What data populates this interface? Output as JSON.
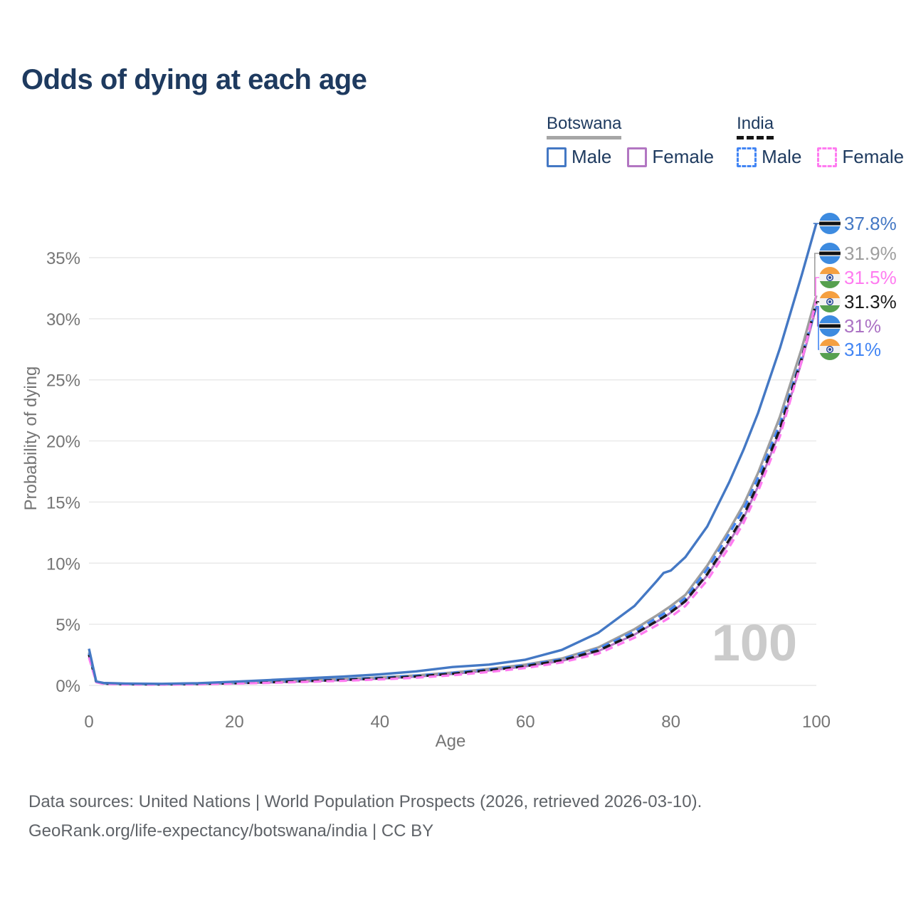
{
  "title": "Odds of dying at each age",
  "legend": {
    "groups": [
      {
        "label": "Botswana",
        "line_style": "solid",
        "underline_color": "#a6a6a6",
        "items": [
          {
            "label": "Male",
            "color": "#4478c4",
            "dash": false
          },
          {
            "label": "Female",
            "color": "#b276c2",
            "dash": false
          }
        ]
      },
      {
        "label": "India",
        "line_style": "dashed",
        "underline_color": "#161616",
        "items": [
          {
            "label": "Male",
            "color": "#4285f4",
            "dash": true
          },
          {
            "label": "Female",
            "color": "#ff7bf0",
            "dash": true
          }
        ]
      }
    ]
  },
  "chart_data": {
    "type": "line",
    "title": "Odds of dying at each age",
    "xlabel": "Age",
    "ylabel": "Probability of dying",
    "x_ticks": [
      0,
      20,
      40,
      60,
      80,
      100
    ],
    "y_ticks": [
      "0%",
      "5%",
      "10%",
      "15%",
      "20%",
      "25%",
      "30%",
      "35%"
    ],
    "xlim": [
      0,
      100
    ],
    "ylim": [
      0,
      38.5
    ],
    "grid": "horizontal",
    "legend_position": "top-right",
    "age_indicator": "100",
    "x": [
      0,
      1,
      2,
      5,
      10,
      15,
      20,
      25,
      30,
      35,
      40,
      45,
      50,
      55,
      60,
      65,
      70,
      75,
      78,
      79,
      80,
      82,
      85,
      88,
      90,
      92,
      95,
      98,
      100
    ],
    "series": [
      {
        "id": "botswana_female",
        "name": "Botswana Female",
        "color": "#b276c2",
        "dash": false,
        "width": 3,
        "values": [
          2.45,
          0.28,
          0.15,
          0.1,
          0.08,
          0.11,
          0.16,
          0.24,
          0.33,
          0.43,
          0.55,
          0.71,
          0.93,
          1.22,
          1.55,
          2.0,
          2.8,
          4.15,
          5.2,
          5.55,
          5.95,
          6.85,
          9.0,
          11.7,
          13.7,
          16.3,
          20.8,
          26.5,
          31.0
        ]
      },
      {
        "id": "botswana_all",
        "name": "Botswana (both sexes)",
        "color": "#9e9e9e",
        "dash": false,
        "width": 3.4,
        "values": [
          2.7,
          0.3,
          0.17,
          0.12,
          0.1,
          0.14,
          0.22,
          0.32,
          0.42,
          0.52,
          0.65,
          0.82,
          1.05,
          1.35,
          1.7,
          2.2,
          3.1,
          4.6,
          5.7,
          6.1,
          6.5,
          7.4,
          9.8,
          12.7,
          14.8,
          17.4,
          22.0,
          27.6,
          31.9
        ]
      },
      {
        "id": "india_male",
        "name": "India Male",
        "color": "#4285f4",
        "dash": true,
        "width": 3.4,
        "values": [
          2.6,
          0.29,
          0.16,
          0.11,
          0.09,
          0.13,
          0.2,
          0.29,
          0.39,
          0.5,
          0.63,
          0.8,
          1.02,
          1.32,
          1.65,
          2.15,
          3.0,
          4.4,
          5.5,
          5.85,
          6.25,
          7.15,
          9.5,
          12.4,
          14.4,
          17.0,
          21.4,
          26.9,
          31.0
        ]
      },
      {
        "id": "india_all",
        "name": "India (both sexes)",
        "color": "#1a1a1a",
        "dash": true,
        "width": 3.4,
        "values": [
          2.5,
          0.28,
          0.15,
          0.1,
          0.08,
          0.12,
          0.18,
          0.26,
          0.35,
          0.45,
          0.57,
          0.73,
          0.95,
          1.24,
          1.57,
          2.05,
          2.85,
          4.2,
          5.25,
          5.6,
          6.0,
          6.9,
          9.1,
          11.9,
          13.9,
          16.5,
          21.0,
          26.8,
          31.3
        ]
      },
      {
        "id": "india_female",
        "name": "India Female",
        "color": "#ff7bf0",
        "dash": true,
        "width": 3.4,
        "values": [
          2.3,
          0.26,
          0.13,
          0.09,
          0.07,
          0.1,
          0.15,
          0.21,
          0.29,
          0.38,
          0.49,
          0.63,
          0.83,
          1.1,
          1.42,
          1.88,
          2.6,
          3.9,
          4.9,
          5.25,
          5.6,
          6.5,
          8.6,
          11.3,
          13.3,
          15.9,
          20.4,
          26.6,
          31.5
        ]
      },
      {
        "id": "botswana_male",
        "name": "Botswana Male",
        "color": "#4478c4",
        "dash": false,
        "width": 3.4,
        "values": [
          3.0,
          0.32,
          0.2,
          0.15,
          0.13,
          0.18,
          0.3,
          0.44,
          0.58,
          0.72,
          0.9,
          1.15,
          1.5,
          1.7,
          2.1,
          2.9,
          4.3,
          6.5,
          8.5,
          9.2,
          9.4,
          10.5,
          13.0,
          16.6,
          19.3,
          22.3,
          27.6,
          33.6,
          37.8
        ]
      }
    ],
    "end_labels": [
      {
        "text": "37.8%",
        "flag": "botswana",
        "color": "#4478c4",
        "series": "botswana_male"
      },
      {
        "text": "31.9%",
        "flag": "botswana",
        "color": "#9e9e9e",
        "series": "botswana_all"
      },
      {
        "text": "31.5%",
        "flag": "india",
        "color": "#ff7bf0",
        "series": "india_female"
      },
      {
        "text": "31.3%",
        "flag": "india",
        "color": "#1a1a1a",
        "series": "india_all"
      },
      {
        "text": "31%",
        "flag": "botswana",
        "color": "#ab72c4",
        "series": "botswana_female"
      },
      {
        "text": "31%",
        "flag": "india",
        "color": "#4285f4",
        "series": "india_male"
      }
    ]
  },
  "footer": {
    "line1": "Data sources: United Nations | World Population Prospects (2026, retrieved 2026-03-10).",
    "line2": "GeoRank.org/life-expectancy/botswana/india | CC BY"
  }
}
